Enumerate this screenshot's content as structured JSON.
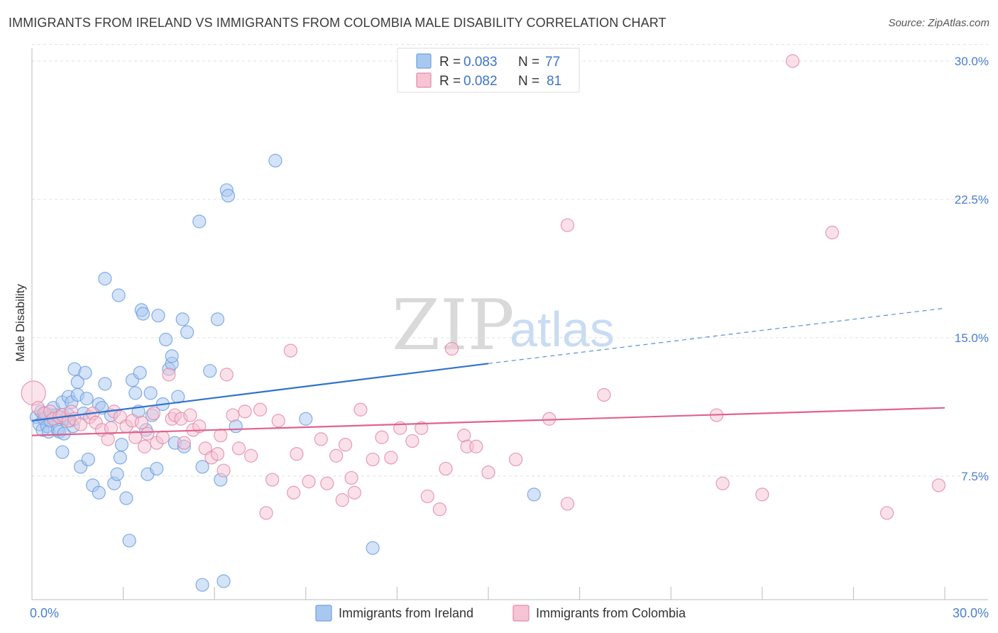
{
  "header": {
    "title": "IMMIGRANTS FROM IRELAND VS IMMIGRANTS FROM COLOMBIA MALE DISABILITY CORRELATION CHART",
    "source": "Source: ZipAtlas.com"
  },
  "watermark": {
    "zip": "ZIP",
    "atlas": "atlas"
  },
  "chart_data": {
    "type": "scatter",
    "title": "IMMIGRANTS FROM IRELAND VS IMMIGRANTS FROM COLOMBIA MALE DISABILITY CORRELATION CHART",
    "xlabel": "",
    "ylabel": "Male Disability",
    "xlim": [
      0,
      30
    ],
    "ylim": [
      0.8,
      31.0
    ],
    "x_tick_labels": [
      {
        "value": 0,
        "label": "0.0%"
      },
      {
        "value": 30,
        "label": "30.0%"
      }
    ],
    "y_tick_labels": [
      {
        "value": 7.5,
        "label": "7.5%"
      },
      {
        "value": 15.0,
        "label": "15.0%"
      },
      {
        "value": 22.5,
        "label": "22.5%"
      },
      {
        "value": 30.0,
        "label": "30.0%"
      }
    ],
    "x_minor_ticks": [
      3,
      6,
      9,
      12,
      15,
      18,
      21,
      24,
      27,
      30
    ],
    "grid": true,
    "legend_position": "top-center",
    "series": [
      {
        "name": "Immigrants from Ireland",
        "color": "#6fa0e0",
        "fill": "#a9c8f0",
        "line_color": "#2f72cc",
        "R": "0.083",
        "N": "77",
        "trend": {
          "x0": 0,
          "y0": 10.5,
          "x1": 15.0,
          "y1": 13.6,
          "dash_x1": 30,
          "dash_y1": 16.6
        },
        "points": [
          [
            0.15,
            10.7
          ],
          [
            0.25,
            10.3
          ],
          [
            0.3,
            11.0
          ],
          [
            0.35,
            10.0
          ],
          [
            0.4,
            10.6
          ],
          [
            0.45,
            10.9
          ],
          [
            0.5,
            10.2
          ],
          [
            0.55,
            9.9
          ],
          [
            0.6,
            10.5
          ],
          [
            0.65,
            10.8
          ],
          [
            0.7,
            11.2
          ],
          [
            0.75,
            10.6
          ],
          [
            0.8,
            10.8
          ],
          [
            0.85,
            10.0
          ],
          [
            0.9,
            9.9
          ],
          [
            0.95,
            10.7
          ],
          [
            1.0,
            8.8
          ],
          [
            1.0,
            11.5
          ],
          [
            1.05,
            9.8
          ],
          [
            1.1,
            10.6
          ],
          [
            1.2,
            10.8
          ],
          [
            1.2,
            11.8
          ],
          [
            1.25,
            10.5
          ],
          [
            1.3,
            11.5
          ],
          [
            1.35,
            10.2
          ],
          [
            1.4,
            13.3
          ],
          [
            1.5,
            12.6
          ],
          [
            1.5,
            11.9
          ],
          [
            1.6,
            8.0
          ],
          [
            1.7,
            10.9
          ],
          [
            1.75,
            13.1
          ],
          [
            1.8,
            11.7
          ],
          [
            1.85,
            8.4
          ],
          [
            2.0,
            7.0
          ],
          [
            2.2,
            11.4
          ],
          [
            2.3,
            11.2
          ],
          [
            2.2,
            6.6
          ],
          [
            2.4,
            18.2
          ],
          [
            2.4,
            12.5
          ],
          [
            2.6,
            10.8
          ],
          [
            2.7,
            7.1
          ],
          [
            2.8,
            7.6
          ],
          [
            2.85,
            17.3
          ],
          [
            2.9,
            8.5
          ],
          [
            2.95,
            9.2
          ],
          [
            3.1,
            6.3
          ],
          [
            3.2,
            4.0
          ],
          [
            3.3,
            12.7
          ],
          [
            3.4,
            12.0
          ],
          [
            3.5,
            11.0
          ],
          [
            3.55,
            13.1
          ],
          [
            3.6,
            16.5
          ],
          [
            3.65,
            16.3
          ],
          [
            3.75,
            10.0
          ],
          [
            3.8,
            7.6
          ],
          [
            3.9,
            12.0
          ],
          [
            3.95,
            10.8
          ],
          [
            4.1,
            7.9
          ],
          [
            4.15,
            16.2
          ],
          [
            4.3,
            11.4
          ],
          [
            4.4,
            14.9
          ],
          [
            4.5,
            13.3
          ],
          [
            4.6,
            13.6
          ],
          [
            4.6,
            14.0
          ],
          [
            4.7,
            9.3
          ],
          [
            4.8,
            11.8
          ],
          [
            4.95,
            16.0
          ],
          [
            5.0,
            9.1
          ],
          [
            5.1,
            15.3
          ],
          [
            5.5,
            21.3
          ],
          [
            5.6,
            8.0
          ],
          [
            5.6,
            1.6
          ],
          [
            5.85,
            13.2
          ],
          [
            6.1,
            16.0
          ],
          [
            6.2,
            7.3
          ],
          [
            6.3,
            1.8
          ],
          [
            6.4,
            23.0
          ],
          [
            6.45,
            22.7
          ],
          [
            6.7,
            10.2
          ],
          [
            8.0,
            24.6
          ],
          [
            9.0,
            10.6
          ],
          [
            11.2,
            3.6
          ],
          [
            16.5,
            6.5
          ]
        ]
      },
      {
        "name": "Immigrants from Colombia",
        "color": "#e38aa8",
        "fill": "#f6c4d4",
        "line_color": "#e0628f",
        "R": "0.082",
        "N": "81",
        "trend": {
          "x0": 0,
          "y0": 9.7,
          "x1": 30,
          "y1": 11.2
        },
        "points": [
          [
            0.05,
            12.0
          ],
          [
            0.2,
            11.2
          ],
          [
            0.4,
            10.9
          ],
          [
            0.6,
            11.0
          ],
          [
            0.7,
            10.6
          ],
          [
            0.9,
            10.7
          ],
          [
            1.0,
            10.8
          ],
          [
            1.2,
            10.5
          ],
          [
            1.3,
            11.0
          ],
          [
            1.4,
            10.6
          ],
          [
            1.6,
            10.3
          ],
          [
            1.9,
            10.7
          ],
          [
            2.0,
            10.9
          ],
          [
            2.1,
            10.4
          ],
          [
            2.3,
            10.0
          ],
          [
            2.5,
            9.5
          ],
          [
            2.6,
            10.1
          ],
          [
            2.7,
            11.0
          ],
          [
            2.9,
            10.7
          ],
          [
            3.1,
            10.2
          ],
          [
            3.3,
            10.5
          ],
          [
            3.4,
            9.6
          ],
          [
            3.6,
            10.4
          ],
          [
            3.7,
            9.1
          ],
          [
            3.8,
            9.8
          ],
          [
            4.0,
            10.9
          ],
          [
            4.1,
            9.3
          ],
          [
            4.3,
            9.6
          ],
          [
            4.5,
            13.0
          ],
          [
            4.6,
            10.6
          ],
          [
            4.7,
            10.8
          ],
          [
            4.9,
            10.6
          ],
          [
            5.0,
            9.3
          ],
          [
            5.2,
            10.8
          ],
          [
            5.3,
            10.0
          ],
          [
            5.5,
            10.2
          ],
          [
            5.7,
            9.0
          ],
          [
            5.9,
            8.5
          ],
          [
            6.1,
            8.7
          ],
          [
            6.2,
            9.7
          ],
          [
            6.3,
            7.8
          ],
          [
            6.4,
            13.0
          ],
          [
            6.6,
            10.8
          ],
          [
            6.8,
            9.0
          ],
          [
            7.0,
            11.0
          ],
          [
            7.2,
            8.6
          ],
          [
            7.5,
            11.1
          ],
          [
            7.7,
            5.5
          ],
          [
            7.9,
            7.3
          ],
          [
            8.1,
            10.5
          ],
          [
            8.5,
            14.3
          ],
          [
            8.6,
            6.6
          ],
          [
            8.7,
            8.7
          ],
          [
            9.1,
            7.2
          ],
          [
            9.5,
            9.5
          ],
          [
            9.7,
            7.1
          ],
          [
            10.0,
            8.6
          ],
          [
            10.2,
            6.2
          ],
          [
            10.3,
            9.2
          ],
          [
            10.5,
            7.4
          ],
          [
            10.6,
            6.6
          ],
          [
            10.8,
            11.1
          ],
          [
            11.2,
            8.4
          ],
          [
            11.5,
            9.6
          ],
          [
            11.8,
            8.5
          ],
          [
            12.1,
            10.1
          ],
          [
            12.5,
            9.4
          ],
          [
            12.8,
            10.1
          ],
          [
            13.0,
            6.4
          ],
          [
            13.4,
            5.7
          ],
          [
            13.6,
            7.9
          ],
          [
            13.8,
            14.4
          ],
          [
            14.2,
            9.7
          ],
          [
            14.3,
            9.1
          ],
          [
            14.6,
            9.1
          ],
          [
            15.0,
            7.7
          ],
          [
            15.9,
            8.4
          ],
          [
            17.0,
            10.6
          ],
          [
            17.6,
            6.0
          ],
          [
            17.6,
            21.1
          ],
          [
            18.8,
            11.9
          ],
          [
            22.5,
            10.8
          ],
          [
            22.7,
            7.1
          ],
          [
            25.0,
            30.0
          ],
          [
            26.3,
            20.7
          ],
          [
            29.8,
            7.0
          ],
          [
            28.1,
            5.5
          ],
          [
            24.0,
            6.5
          ]
        ]
      }
    ]
  },
  "legend_top": {
    "rows": [
      {
        "r_label": "R =",
        "r_value": "0.083",
        "n_label": "N =",
        "n_value": "77"
      },
      {
        "r_label": "R =",
        "r_value": "0.082",
        "n_label": "N =",
        "n_value": "81"
      }
    ]
  },
  "legend_bottom": {
    "items": [
      "Immigrants from Ireland",
      "Immigrants from Colombia"
    ]
  }
}
